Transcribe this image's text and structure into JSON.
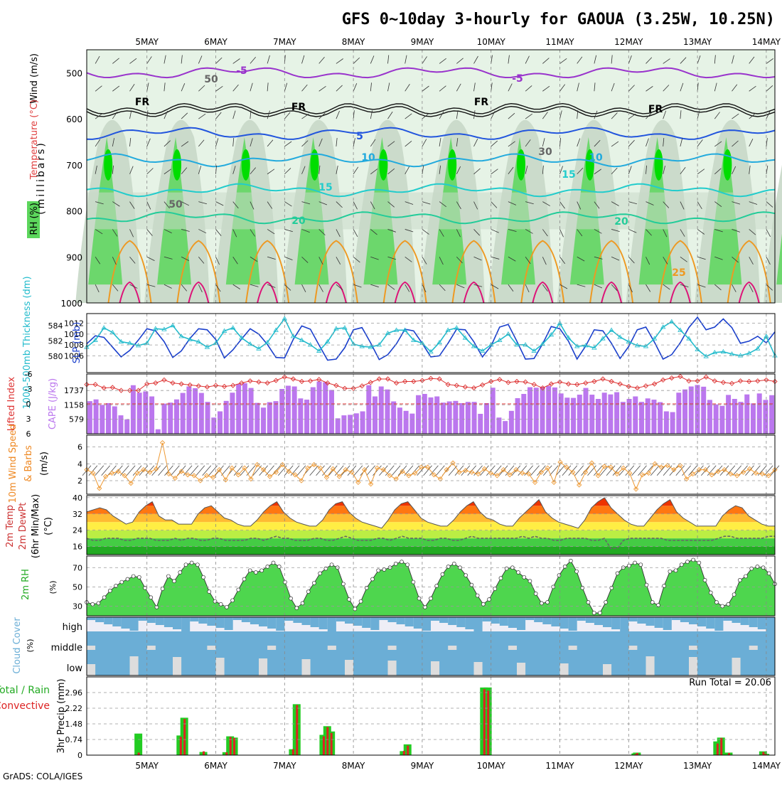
{
  "title": "GFS 0~10day 3-hourly for GAOUA (3.25W, 10.25N)",
  "credit": "GrADS: COLA/IGES",
  "days": [
    "5MAY",
    "6MAY",
    "7MAY",
    "8MAY",
    "9MAY",
    "10MAY",
    "11MAY",
    "12MAY",
    "13MAY",
    "14MAY"
  ],
  "colors": {
    "rh_light": "#e6f3e6",
    "rh_mid": "#c8d8c8",
    "rh_green": "#5cd65c",
    "rh_bright": "#00dd00",
    "isotherm_purple": "#9933cc",
    "isotherm_blue": "#2255dd",
    "isotherm_sky": "#22aadd",
    "isotherm_cyan": "#22cccc",
    "isotherm_teal": "#22cc99",
    "isotherm_orange": "#ee9922",
    "isotherm_magenta": "#dd1177",
    "slp": "#1a3fcc",
    "thickness": "#22bbcc",
    "lifted": "#dd3333",
    "cape": "#bb77ee",
    "wind": "#ee9933",
    "temp_fill": "#ff6600",
    "dewpt": "#666666",
    "rh_fill": "#22cc22",
    "cloud": "#6baed6",
    "cloud_none": "#eeeef6",
    "precip_total": "#22cc22",
    "precip_conv": "#dd2222"
  },
  "chart_data": [
    {
      "type": "heatmap",
      "ylabel": "(millibars)",
      "ylabels": [
        "Wind (m/s)",
        "Temperature (°C)",
        "RH (%)"
      ],
      "y_ticks": [
        500,
        600,
        700,
        800,
        900,
        1000
      ],
      "ylim": [
        450,
        1000
      ],
      "contour_labels": [
        "-5",
        "FR",
        "5",
        "10",
        "15",
        "20",
        "25",
        "30",
        "50"
      ],
      "freezing_level_mb": 578,
      "isotherms": [
        {
          "label": "-5",
          "mb": 500
        },
        {
          "label": "5",
          "mb": 632
        },
        {
          "label": "10",
          "mb": 690
        },
        {
          "label": "15",
          "mb": 755
        },
        {
          "label": "20",
          "mb": 815
        }
      ]
    },
    {
      "type": "line",
      "ylabels": [
        "1000-500mb Thickness (dm)",
        "SLP (mb)"
      ],
      "left_ticks": [
        580,
        582,
        584
      ],
      "right_ticks": [
        1006,
        1008,
        1010,
        1012
      ],
      "series": [
        {
          "name": "SLP (mb)",
          "values": [
            1008.2,
            1009.7,
            1009.4,
            1007.6,
            1005.8,
            1007.0,
            1008.9,
            1011.0,
            1010.6,
            1008.6,
            1005.7,
            1006.9,
            1009.2,
            1011.0,
            1010.8,
            1009.0,
            1005.6,
            1007.1,
            1009.1,
            1011.0,
            1010.0,
            1008.1,
            1005.7,
            1005.6,
            1009.0,
            1011.5,
            1010.9,
            1008.0,
            1005.2,
            1005.4,
            1007.5,
            1010.8,
            1011.2,
            1008.4,
            1005.3,
            1006.2,
            1008.2,
            1010.9,
            1010.6,
            1008.3,
            1005.8,
            1006.0,
            1008.3,
            1010.9,
            1010.8,
            1008.6,
            1005.8,
            1007.8,
            1011.3,
            1011.8,
            1008.7,
            1005.4,
            1005.5,
            1008.2,
            1011.4,
            1011.0,
            1008.7,
            1005.4,
            1007.8,
            1010.8,
            1010.6,
            1008.3,
            1005.5,
            1007.7,
            1010.8,
            1011.3,
            1008.5,
            1005.4,
            1006.2,
            1008.4,
            1011.2,
            1013.1,
            1010.8,
            1011.3,
            1012.8,
            1011.2,
            1008.3,
            1008.7,
            1009.6,
            1008.4,
            1010.4
          ]
        },
        {
          "name": "1000-500mb Thickness (dm)",
          "values": [
            581.2,
            582.1,
            583.7,
            583.1,
            581.9,
            581.7,
            581.4,
            581.7,
            583.6,
            583.5,
            584.0,
            582.6,
            582.2,
            581.9,
            581.2,
            581.7,
            583.3,
            583.7,
            582.4,
            581.6,
            581.0,
            581.8,
            583.4,
            584.9,
            582.6,
            582.1,
            581.5,
            580.7,
            581.9,
            583.6,
            583.7,
            581.6,
            581.3,
            581.2,
            581.5,
            583.0,
            583.4,
            583.4,
            582.1,
            581.7,
            580.6,
            581.8,
            583.4,
            583.7,
            582.4,
            581.3,
            580.7,
            581.5,
            582.1,
            582.9,
            581.5,
            581.5,
            580.7,
            581.6,
            582.8,
            584.3,
            582.4,
            581.3,
            581.4,
            581.1,
            582.3,
            583.4,
            582.5,
            581.9,
            581.4,
            581.3,
            582.3,
            583.8,
            584.5,
            583.4,
            582.3,
            580.9,
            580.0,
            580.5,
            580.6,
            580.3,
            580.1,
            580.4,
            581.0,
            582.6,
            580.1
          ]
        }
      ]
    },
    {
      "type": "bar",
      "ylabels": [
        "Lifted Index",
        "CAPE (J/kg)"
      ],
      "left_ticks": [
        -6,
        -3,
        0,
        3,
        6
      ],
      "right_ticks": [
        579,
        1158,
        1737
      ],
      "series": [
        {
          "name": "CAPE (J/kg)",
          "values": [
            1310,
            1380,
            1160,
            1230,
            1100,
            740,
            580,
            1950,
            1650,
            1700,
            1500,
            180,
            1210,
            1250,
            1380,
            1640,
            1900,
            1830,
            1640,
            1280,
            650,
            900,
            1320,
            1650,
            2000,
            2030,
            1840,
            1240,
            1050,
            1270,
            1310,
            1800,
            1930,
            1900,
            1420,
            1370,
            1870,
            2100,
            2070,
            1760,
            620,
            740,
            760,
            820,
            900,
            1950,
            1500,
            1900,
            1780,
            1300,
            1050,
            920,
            810,
            1550,
            1600,
            1460,
            1500,
            1250,
            1300,
            1320,
            1230,
            1280,
            1280,
            800,
            1230,
            1850,
            650,
            510,
            920,
            1430,
            1600,
            1870,
            1850,
            1880,
            1920,
            1860,
            1620,
            1450,
            1440,
            1570,
            1840,
            1570,
            1400,
            1650,
            1580,
            1670,
            1280,
            1400,
            1500,
            1280,
            1420,
            1370,
            1270,
            900,
            870,
            1650,
            1780,
            1900,
            1960,
            1890,
            1360,
            1180,
            1120,
            1560,
            1400,
            1280,
            1580,
            1220,
            1620,
            1360,
            1550
          ]
        },
        {
          "name": "Lifted Index",
          "values": [
            -3.9,
            -3.9,
            -3.2,
            -3.3,
            -2.7,
            -2.7,
            -2.7,
            -4.0,
            -4.2,
            -4.8,
            -4.2,
            -4.0,
            -3.8,
            -3.6,
            -3.4,
            -3.7,
            -3.5,
            -3.7,
            -4.2,
            -4.6,
            -4.4,
            -4.2,
            -4.7,
            -5.4,
            -5.0,
            -4.5,
            -4.6,
            -4.9,
            -4.2,
            -3.7,
            -3.1,
            -3.1,
            -3.6,
            -4.3,
            -5.0,
            -5.0,
            -4.2,
            -4.5,
            -4.5,
            -4.7,
            -5.1,
            -5.0,
            -3.9,
            -3.7,
            -3.4,
            -3.2,
            -3.8,
            -4.5,
            -4.9,
            -4.3,
            -4.5,
            -4.4,
            -3.9,
            -3.2,
            -4.0,
            -4.4,
            -4.0,
            -3.9,
            -4.2,
            -4.5,
            -5.0,
            -4.5,
            -4.0,
            -3.5,
            -3.2,
            -3.6,
            -4.0,
            -4.8,
            -5.2,
            -5.5,
            -4.6,
            -4.6,
            -5.4,
            -4.6,
            -4.3,
            -4.1,
            -4.6,
            -4.5,
            -4.6,
            -4.8,
            -4.5
          ]
        }
      ]
    },
    {
      "type": "line",
      "ylabels": [
        "10m Wind Speed",
        "& Barbs",
        "(m/s)"
      ],
      "left_ticks": [
        2,
        4,
        6
      ],
      "series": [
        {
          "name": "Speed",
          "values": [
            3.3,
            2.9,
            1.1,
            2.5,
            2.9,
            3.1,
            2.6,
            1.7,
            2.9,
            3.3,
            3.0,
            3.4,
            6.5,
            2.8,
            2.3,
            3.1,
            2.7,
            2.6,
            2.0,
            2.6,
            2.4,
            3.3,
            2.1,
            3.5,
            2.7,
            3.5,
            2.2,
            3.9,
            3.3,
            2.5,
            3.0,
            3.9,
            3.1,
            2.7,
            2.0,
            3.5,
            3.9,
            3.5,
            2.4,
            3.4,
            2.5,
            3.3,
            3.0,
            1.8,
            3.3,
            1.6,
            3.5,
            3.3,
            2.6,
            2.2,
            3.1,
            2.6,
            2.9,
            3.6,
            3.6,
            2.7,
            2.2,
            3.3,
            4.1,
            3.0,
            3.2,
            3.0,
            2.8,
            3.4,
            2.9,
            2.6,
            3.3,
            2.7,
            3.3,
            2.9,
            2.8,
            1.8,
            3.0,
            3.5,
            1.8,
            4.2,
            3.6,
            3.0,
            1.5,
            3.0,
            4.1,
            2.6,
            3.7,
            3.6,
            2.8,
            3.5,
            2.9,
            1.0,
            2.7,
            2.9,
            4.0,
            3.6,
            3.8,
            3.3,
            3.8,
            2.2,
            2.8,
            3.3,
            3.3,
            2.7,
            3.1,
            3.3,
            2.8,
            2.6,
            3.0,
            3.4,
            2.9,
            2.8,
            2.6,
            3.3
          ]
        }
      ]
    },
    {
      "type": "area",
      "ylabels": [
        "2m Temp",
        "2m DewPt",
        "(6hr Min/Max)",
        "(°C)"
      ],
      "left_ticks": [
        16,
        24,
        32,
        40
      ],
      "series": [
        {
          "name": "2m Temp",
          "values": [
            33,
            34,
            35,
            34,
            31,
            29,
            27,
            28,
            33,
            36,
            38,
            31,
            29,
            29,
            27,
            27,
            27,
            32,
            35,
            36,
            33,
            30,
            29,
            27,
            26,
            26,
            29,
            33,
            36,
            38,
            33,
            30,
            28,
            27,
            26,
            26,
            29,
            34,
            37,
            38,
            33,
            30,
            28,
            27,
            26,
            25,
            29,
            34,
            37,
            38,
            34,
            30,
            28,
            27,
            26,
            26,
            29,
            33,
            36,
            38,
            33,
            30,
            29,
            27,
            26,
            26,
            30,
            33,
            36,
            39,
            33,
            30,
            28,
            27,
            26,
            25,
            29,
            35,
            38,
            40,
            35,
            32,
            29,
            27,
            26,
            26,
            30,
            34,
            37,
            39,
            33,
            30,
            28,
            26,
            26,
            26,
            26,
            31,
            34,
            36,
            35,
            31,
            29,
            27,
            26,
            26
          ]
        },
        {
          "name": "2m DewPt",
          "values": [
            20,
            19,
            19,
            20,
            20,
            20,
            19,
            19,
            20,
            20,
            20,
            19,
            19,
            19,
            20,
            19,
            20,
            20,
            19,
            19,
            20,
            20,
            19,
            19,
            19,
            19,
            20,
            20,
            19,
            20,
            21,
            20,
            20,
            19,
            19,
            19,
            20,
            20,
            19,
            19,
            20,
            21,
            20,
            19,
            19,
            19,
            20,
            20,
            19,
            20,
            21,
            20,
            20,
            20,
            19,
            19,
            20,
            20,
            19,
            19,
            20,
            21,
            20,
            20,
            20,
            20,
            20,
            20,
            20,
            21,
            20,
            21,
            20,
            20,
            19,
            19,
            20,
            20,
            20,
            20,
            19,
            19,
            20,
            15,
            15,
            19,
            20,
            20,
            20,
            20,
            20,
            20,
            19,
            19,
            19,
            19,
            19,
            19,
            19,
            19,
            20,
            21,
            21,
            20,
            20,
            20,
            20,
            20,
            21,
            21
          ]
        }
      ]
    },
    {
      "type": "area",
      "ylabels": [
        "2m RH",
        "(%)"
      ],
      "left_ticks": [
        30,
        50,
        70
      ],
      "series": [
        {
          "name": "2m RH",
          "values": [
            34,
            32,
            33,
            39,
            46,
            51,
            55,
            58,
            61,
            60,
            49,
            39,
            29,
            48,
            61,
            56,
            65,
            73,
            75,
            73,
            60,
            45,
            35,
            32,
            29,
            36,
            47,
            58,
            67,
            65,
            67,
            71,
            75,
            71,
            55,
            38,
            28,
            33,
            45,
            54,
            64,
            69,
            73,
            70,
            53,
            37,
            27,
            35,
            49,
            58,
            67,
            68,
            70,
            74,
            76,
            73,
            55,
            38,
            29,
            38,
            51,
            63,
            71,
            74,
            70,
            62,
            52,
            41,
            32,
            37,
            48,
            59,
            69,
            70,
            65,
            60,
            56,
            43,
            33,
            34,
            50,
            62,
            71,
            77,
            66,
            49,
            34,
            23,
            23,
            34,
            49,
            64,
            70,
            72,
            75,
            73,
            52,
            34,
            31,
            51,
            66,
            67,
            73,
            76,
            78,
            75,
            57,
            44,
            34,
            30,
            32,
            42,
            57,
            61,
            69,
            71,
            70,
            64,
            53
          ]
        }
      ]
    },
    {
      "type": "heatmap",
      "ylabels": [
        "Cloud Cover",
        "(%)"
      ],
      "rows": [
        "high",
        "middle",
        "low"
      ]
    },
    {
      "type": "bar",
      "ylabels": [
        "3hr Precip (mm)",
        "Total / Rain",
        "Convective"
      ],
      "left_ticks": [
        0,
        0.74,
        1.48,
        2.22,
        2.96
      ],
      "annotation": "Run Total = 20.06",
      "series": [
        {
          "name": "Total",
          "at": [
            6.8,
            12.3,
            12.8,
            15.3,
            18.3,
            18.8,
            19.3,
            27.0,
            27.5,
            31.0,
            31.5,
            32.0,
            41.5,
            42.0,
            52.0,
            52.5,
            71.8,
            72.0,
            82.5,
            83.0,
            84.0,
            88.5,
            88.8
          ],
          "values": [
            1.02,
            0.93,
            1.77,
            0.15,
            0.14,
            0.89,
            0.83,
            0.28,
            2.41,
            0.96,
            1.37,
            1.12,
            0.19,
            0.51,
            3.2,
            3.2,
            0.08,
            0.12,
            0.65,
            0.83,
            0.12,
            0.18,
            0.06
          ]
        },
        {
          "name": "Convective",
          "at": [
            6.8,
            12.3,
            12.8,
            15.3,
            18.3,
            18.8,
            19.3,
            27.0,
            27.5,
            31.0,
            31.5,
            32.0,
            41.5,
            42.0,
            52.0,
            52.5,
            71.8,
            72.0,
            82.5,
            83.0,
            84.0,
            88.5,
            88.8
          ],
          "values": [
            0.12,
            0.87,
            1.71,
            0.18,
            0.13,
            0.86,
            0.81,
            0.28,
            2.37,
            0.89,
            1.33,
            1.05,
            0.2,
            0.45,
            3.12,
            3.05,
            0.05,
            0.1,
            0.55,
            0.81,
            0.1,
            0.15,
            0.05
          ]
        }
      ]
    }
  ]
}
